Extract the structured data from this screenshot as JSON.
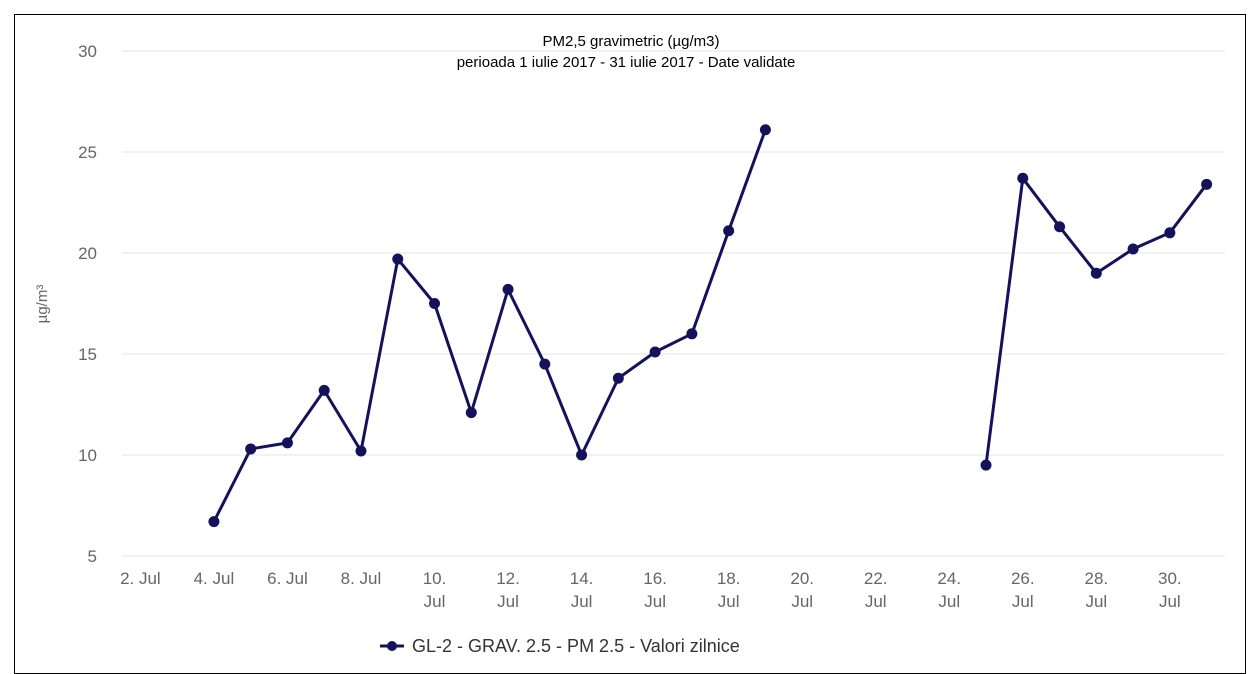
{
  "chart_data": {
    "type": "line",
    "title": "PM2,5 gravimetric (µg/m3)",
    "subtitle": "perioada 1 iulie 2017 - 31 iulie 2017 - Date validate",
    "ylabel": "µg/m³",
    "xlabel": "",
    "ylim": [
      5,
      30
    ],
    "yticks": [
      5,
      10,
      15,
      20,
      25,
      30
    ],
    "xlim": [
      1,
      31
    ],
    "xticks": [
      {
        "day": 2,
        "label": [
          "2. Jul"
        ]
      },
      {
        "day": 4,
        "label": [
          "4. Jul"
        ]
      },
      {
        "day": 6,
        "label": [
          "6. Jul"
        ]
      },
      {
        "day": 8,
        "label": [
          "8. Jul"
        ]
      },
      {
        "day": 10,
        "label": [
          "10.",
          "Jul"
        ]
      },
      {
        "day": 12,
        "label": [
          "12.",
          "Jul"
        ]
      },
      {
        "day": 14,
        "label": [
          "14.",
          "Jul"
        ]
      },
      {
        "day": 16,
        "label": [
          "16.",
          "Jul"
        ]
      },
      {
        "day": 18,
        "label": [
          "18.",
          "Jul"
        ]
      },
      {
        "day": 20,
        "label": [
          "20.",
          "Jul"
        ]
      },
      {
        "day": 22,
        "label": [
          "22.",
          "Jul"
        ]
      },
      {
        "day": 24,
        "label": [
          "24.",
          "Jul"
        ]
      },
      {
        "day": 26,
        "label": [
          "26.",
          "Jul"
        ]
      },
      {
        "day": 28,
        "label": [
          "28.",
          "Jul"
        ]
      },
      {
        "day": 30,
        "label": [
          "30.",
          "Jul"
        ]
      }
    ],
    "grid": true,
    "legend_position": "bottom",
    "series": [
      {
        "name": "GL-2 - GRAV. 2.5 - PM 2.5 - Valori zilnice",
        "color": "#15125c",
        "points": [
          {
            "day": 4,
            "value": 6.7
          },
          {
            "day": 5,
            "value": 10.3
          },
          {
            "day": 6,
            "value": 10.6
          },
          {
            "day": 7,
            "value": 13.2
          },
          {
            "day": 8,
            "value": 10.2
          },
          {
            "day": 9,
            "value": 19.7
          },
          {
            "day": 10,
            "value": 17.5
          },
          {
            "day": 11,
            "value": 12.1
          },
          {
            "day": 12,
            "value": 18.2
          },
          {
            "day": 13,
            "value": 14.5
          },
          {
            "day": 14,
            "value": 10.0
          },
          {
            "day": 15,
            "value": 13.8
          },
          {
            "day": 16,
            "value": 15.1
          },
          {
            "day": 17,
            "value": 16.0
          },
          {
            "day": 18,
            "value": 21.1
          },
          {
            "day": 19,
            "value": 26.1
          },
          {
            "day": 25,
            "value": 9.5
          },
          {
            "day": 26,
            "value": 23.7
          },
          {
            "day": 27,
            "value": 21.3
          },
          {
            "day": 28,
            "value": 19.0
          },
          {
            "day": 29,
            "value": 20.2
          },
          {
            "day": 30,
            "value": 21.0
          },
          {
            "day": 31,
            "value": 23.4
          }
        ]
      }
    ]
  }
}
